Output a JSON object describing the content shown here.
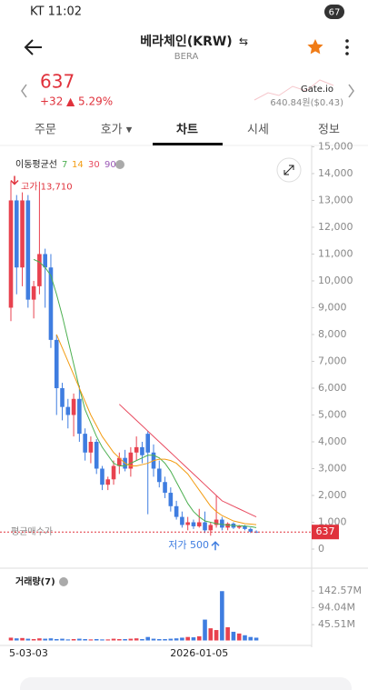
{
  "status_bar": {
    "carrier_time": "KT 11:02",
    "battery": "67"
  },
  "header": {
    "title": "베라체인(KRW)",
    "swap": "⇆",
    "subtitle": "BERA"
  },
  "price": {
    "value": 637,
    "change": "+32",
    "change_pct": "▲ 5.29%",
    "exchange": "Gate.io",
    "exchange_price": "640.84원($0.43)"
  },
  "tabs": [
    "주문",
    "호가 ▾",
    "차트",
    "시세",
    "정보"
  ],
  "chart_data": {
    "type": "candlestick",
    "legend_title": "이동평균선",
    "categories": [
      "5-03-03",
      null,
      null,
      null,
      null,
      null,
      null,
      null,
      null,
      null,
      null,
      null,
      null,
      null,
      null,
      null,
      null,
      null,
      null,
      null,
      null,
      null,
      null,
      null,
      null,
      null,
      null,
      null,
      null,
      null,
      null,
      null,
      null,
      "2026-01-05",
      null,
      null,
      null,
      null,
      null,
      null,
      null,
      null,
      null,
      null
    ],
    "open": [
      9000,
      13000,
      10500,
      13000,
      9300,
      9800,
      11000,
      10500,
      7800,
      6000,
      5300,
      5000,
      5600,
      4300,
      3600,
      4000,
      3000,
      2400,
      2600,
      3100,
      3400,
      3000,
      3600,
      3800,
      4300,
      3600,
      3000,
      2500,
      2100,
      1600,
      1200,
      900,
      1000,
      850,
      1000,
      700,
      900,
      1100,
      800,
      950,
      800,
      850,
      750,
      650
    ],
    "high": [
      13710,
      13200,
      13300,
      13200,
      10000,
      13700,
      11200,
      11000,
      8000,
      6200,
      5600,
      5800,
      6100,
      4500,
      4200,
      4100,
      3100,
      2700,
      3300,
      3600,
      3700,
      3800,
      4200,
      4000,
      4400,
      3900,
      3300,
      2700,
      2300,
      1800,
      1400,
      1200,
      1100,
      1500,
      1400,
      1000,
      2000,
      1200,
      1000,
      1000,
      900,
      900,
      800,
      700
    ],
    "low": [
      8500,
      9500,
      9800,
      9000,
      8600,
      9500,
      9000,
      7500,
      5000,
      4800,
      4500,
      4200,
      4000,
      3300,
      3200,
      2800,
      2200,
      2200,
      2400,
      2800,
      2900,
      2700,
      3300,
      3200,
      1300,
      2700,
      2300,
      1900,
      1400,
      1100,
      800,
      700,
      750,
      800,
      600,
      500,
      800,
      700,
      700,
      750,
      750,
      700,
      600,
      600
    ],
    "close": [
      13000,
      10500,
      13000,
      9300,
      9800,
      11000,
      10500,
      7800,
      6000,
      5300,
      5000,
      5600,
      4300,
      3600,
      4000,
      3000,
      2400,
      2600,
      3100,
      3400,
      3000,
      3600,
      3800,
      3500,
      3600,
      3000,
      2500,
      2100,
      1600,
      1200,
      900,
      1000,
      850,
      1000,
      700,
      900,
      1100,
      800,
      950,
      800,
      850,
      750,
      650,
      637
    ],
    "up_color": "#e8424f",
    "down_color": "#3f7de0",
    "series": [
      {
        "name": "7",
        "color": "#4caf50",
        "values": [
          null,
          null,
          null,
          null,
          10800,
          10700,
          10500,
          10200,
          9500,
          8700,
          7800,
          6900,
          6000,
          5200,
          4700,
          4200,
          3800,
          3500,
          3200,
          3100,
          3100,
          3200,
          3300,
          3400,
          3500,
          3500,
          3400,
          3200,
          2900,
          2500,
          2100,
          1700,
          1400,
          1200,
          1050,
          1000,
          950,
          920,
          900,
          880,
          870,
          860,
          840,
          800
        ]
      },
      {
        "name": "14",
        "color": "#f39c12",
        "values": [
          null,
          null,
          null,
          null,
          null,
          null,
          null,
          null,
          8000,
          7500,
          7000,
          6500,
          6000,
          5500,
          5000,
          4600,
          4200,
          3900,
          3600,
          3400,
          3200,
          3100,
          3100,
          3150,
          3200,
          3300,
          3350,
          3350,
          3300,
          3200,
          3000,
          2800,
          2500,
          2200,
          1900,
          1600,
          1400,
          1250,
          1150,
          1050,
          1000,
          950,
          930,
          910
        ]
      },
      {
        "name": "30",
        "color": "#e84a5f",
        "values": [
          null,
          null,
          null,
          null,
          null,
          null,
          null,
          null,
          null,
          null,
          null,
          null,
          null,
          null,
          null,
          null,
          null,
          null,
          null,
          5400,
          5200,
          5000,
          4800,
          4600,
          4400,
          4200,
          4000,
          3800,
          3600,
          3400,
          3200,
          3000,
          2800,
          2600,
          2400,
          2200,
          2000,
          1800,
          1700,
          1600,
          1500,
          1400,
          1300,
          1200
        ]
      },
      {
        "name": "90",
        "color": "#9b59b6",
        "values": [
          null,
          null,
          null,
          null,
          null,
          null,
          null,
          null,
          null,
          null,
          null,
          null,
          null,
          null,
          null,
          null,
          null,
          null,
          null,
          null,
          null,
          null,
          null,
          null,
          null,
          null,
          null,
          null,
          null,
          null,
          null,
          null,
          null,
          null,
          null,
          null,
          null,
          null,
          null,
          null,
          null,
          null,
          null,
          null
        ]
      }
    ],
    "ylim": [
      -700,
      15100
    ],
    "yticks": [
      0,
      {
        "value": 1000,
        "label": "1,000"
      },
      {
        "value": 2000,
        "label": "2,000"
      },
      {
        "value": 3000,
        "label": "3,000"
      },
      {
        "value": 4000,
        "label": "4,000"
      },
      {
        "value": 5000,
        "label": "5,000"
      },
      {
        "value": 6000,
        "label": "6,000"
      },
      {
        "value": 7000,
        "label": "7,000"
      },
      {
        "value": 8000,
        "label": "8,000"
      },
      {
        "value": 9000,
        "label": "9,000"
      },
      {
        "value": 10000,
        "label": "10,000"
      },
      {
        "value": 11000,
        "label": "11,000"
      },
      {
        "value": 12000,
        "label": "12,000"
      },
      {
        "value": 13000,
        "label": "13,000"
      },
      {
        "value": 14000,
        "label": "14,000"
      },
      {
        "value": 15000,
        "label": "15,000"
      }
    ],
    "high_marker": {
      "value": 13710,
      "label": "고가 13,710"
    },
    "low_marker": {
      "value": 500,
      "label": "저가 500"
    },
    "last_price": 637,
    "avg_label": "평균매수가",
    "volume": {
      "name": "거래량(7)",
      "values": [
        8,
        6,
        7,
        5,
        4,
        6,
        5,
        6,
        4,
        5,
        3,
        4,
        5,
        4,
        3,
        4,
        3,
        3,
        5,
        4,
        4,
        5,
        6,
        4,
        10,
        5,
        4,
        4,
        5,
        6,
        8,
        10,
        9,
        12,
        60,
        35,
        30,
        142,
        38,
        25,
        20,
        15,
        10,
        8
      ],
      "ylim": [
        0,
        195
      ],
      "yticks": [
        {
          "value": 45.51,
          "label": "45.51M"
        },
        {
          "value": 94.04,
          "label": "94.04M"
        },
        {
          "value": 142.57,
          "label": "142.57M"
        }
      ]
    }
  }
}
